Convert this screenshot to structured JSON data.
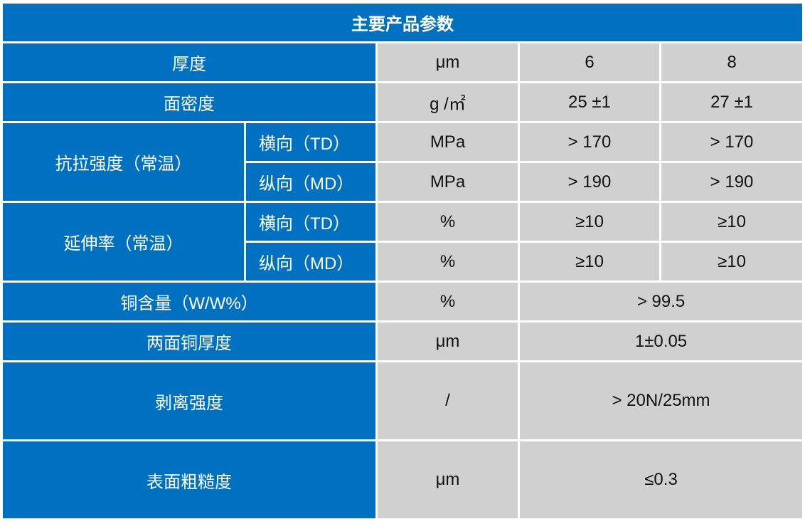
{
  "title": "主要产品参数",
  "rows": {
    "thickness": {
      "label": "厚度",
      "unit": "μm",
      "v1": "6",
      "v2": "8"
    },
    "areal_density": {
      "label": "面密度",
      "unit": "g /㎡",
      "v1": "25 ±1",
      "v2": "27 ±1"
    },
    "tensile": {
      "label": "抗拉强度（常温）",
      "td": {
        "label": "横向（TD）",
        "unit": "MPa",
        "v1": "> 170",
        "v2": "> 170"
      },
      "md": {
        "label": "纵向（MD）",
        "unit": "MPa",
        "v1": "> 190",
        "v2": "> 190"
      }
    },
    "elongation": {
      "label": "延伸率（常温）",
      "td": {
        "label": "横向（TD）",
        "unit": "%",
        "v1": "≥10",
        "v2": "≥10"
      },
      "md": {
        "label": "纵向（MD）",
        "unit": "%",
        "v1": "≥10",
        "v2": "≥10"
      }
    },
    "copper_content": {
      "label": "铜含量（W/W%）",
      "unit": "%",
      "value": "> 99.5"
    },
    "copper_thickness": {
      "label": "两面铜厚度",
      "unit": "μm",
      "value": "1±0.05"
    },
    "peel_strength": {
      "label": "剥离强度",
      "unit": "/",
      "value": "> 20N/25mm"
    },
    "roughness": {
      "label": "表面粗糙度",
      "unit": "μm",
      "value": "≤0.3"
    }
  },
  "colors": {
    "header_blue": "#0070c0",
    "cell_gray": "#d0d0d0",
    "text_white": "#ffffff"
  }
}
